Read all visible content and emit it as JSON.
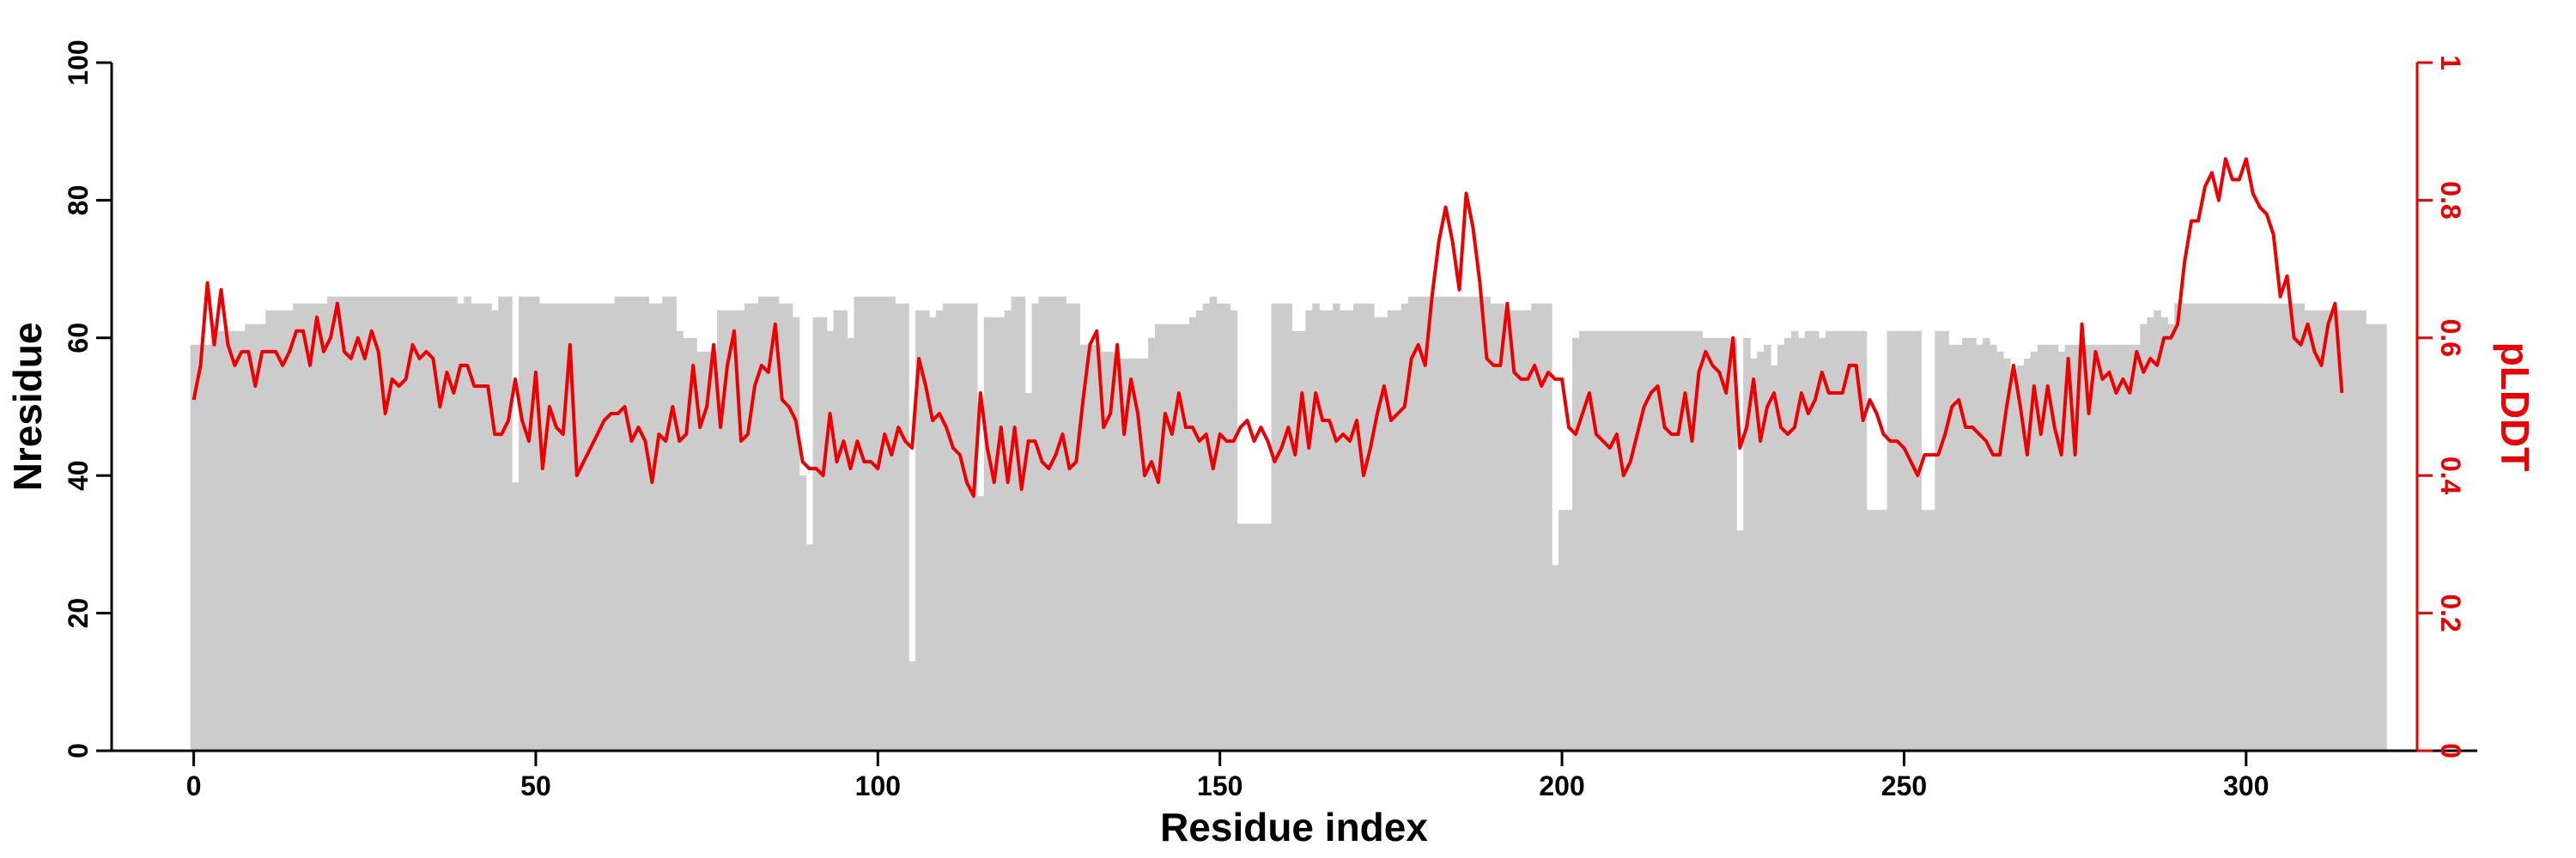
{
  "chart_data": {
    "type": "bar+line",
    "title": "",
    "xlabel": "Residue index",
    "ylabel": "Nresidue",
    "y2label": "pLDDT",
    "xlim": [
      -12,
      325
    ],
    "ylim": [
      0,
      100
    ],
    "y2lim": [
      0,
      1
    ],
    "xticks": [
      "0",
      "50",
      "100",
      "150",
      "200",
      "250",
      "300"
    ],
    "yticks": [
      "0",
      "20",
      "40",
      "60",
      "80",
      "100"
    ],
    "y2ticks": [
      "0",
      "0.2",
      "0.4",
      "0.6",
      "0.8",
      "1"
    ],
    "grid": false,
    "colors": {
      "bars": "#cccccc",
      "line": "#ee0000",
      "axis": "#000000",
      "axis2": "#ee0000"
    },
    "bars": {
      "name": "Nresidue",
      "start": 0,
      "values": [
        59,
        59,
        59,
        61,
        61,
        61,
        61,
        61,
        62,
        62,
        62,
        64,
        64,
        64,
        64,
        65,
        65,
        65,
        65,
        65,
        66,
        66,
        66,
        66,
        66,
        66,
        66,
        66,
        66,
        66,
        66,
        66,
        66,
        66,
        66,
        66,
        66,
        66,
        66,
        65,
        66,
        65,
        65,
        65,
        64,
        66,
        66,
        39,
        66,
        66,
        66,
        65,
        65,
        65,
        65,
        65,
        65,
        65,
        65,
        65,
        65,
        65,
        66,
        66,
        66,
        66,
        66,
        65,
        65,
        66,
        66,
        61,
        60,
        60,
        58,
        58,
        58,
        64,
        64,
        64,
        64,
        65,
        65,
        66,
        66,
        66,
        65,
        65,
        63,
        40,
        30,
        63,
        63,
        61,
        64,
        64,
        60,
        66,
        66,
        66,
        66,
        66,
        66,
        65,
        65,
        13,
        64,
        64,
        63,
        64,
        65,
        65,
        65,
        65,
        65,
        37,
        63,
        63,
        63,
        64,
        66,
        66,
        52,
        65,
        66,
        66,
        66,
        66,
        65,
        65,
        59,
        59,
        59,
        58,
        58,
        57,
        57,
        57,
        57,
        57,
        60,
        62,
        62,
        62,
        62,
        62,
        63,
        64,
        65,
        66,
        65,
        65,
        64,
        33,
        33,
        33,
        33,
        33,
        65,
        65,
        65,
        61,
        61,
        64,
        65,
        64,
        64,
        65,
        64,
        64,
        65,
        65,
        65,
        63,
        63,
        64,
        64,
        65,
        66,
        66,
        66,
        66,
        66,
        66,
        66,
        66,
        66,
        66,
        66,
        66,
        65,
        65,
        64,
        64,
        64,
        64,
        65,
        65,
        65,
        27,
        35,
        35,
        60,
        61,
        61,
        61,
        61,
        61,
        61,
        61,
        61,
        61,
        61,
        61,
        61,
        61,
        61,
        61,
        61,
        61,
        61,
        60,
        60,
        60,
        60,
        60,
        32,
        60,
        57,
        58,
        59,
        56,
        59,
        60,
        61,
        60,
        61,
        61,
        60,
        61,
        61,
        61,
        61,
        61,
        61,
        35,
        35,
        35,
        61,
        61,
        61,
        61,
        61,
        35,
        35,
        61,
        61,
        59,
        59,
        60,
        60,
        59,
        60,
        59,
        58,
        57,
        55,
        56,
        57,
        58,
        59,
        59,
        59,
        58,
        59,
        59,
        59,
        59,
        59,
        59,
        59,
        59,
        59,
        59,
        59,
        62,
        63,
        64,
        63,
        62,
        65,
        65,
        65,
        65,
        65,
        65,
        65,
        65,
        65,
        65,
        65,
        65,
        65,
        65,
        65,
        65,
        65,
        65,
        65,
        64,
        64,
        64,
        64,
        64,
        64,
        64,
        64,
        64,
        62,
        62,
        62
      ]
    },
    "line": {
      "name": "pLDDT",
      "start": 0,
      "values": [
        0.51,
        0.56,
        0.68,
        0.59,
        0.67,
        0.59,
        0.56,
        0.58,
        0.58,
        0.53,
        0.58,
        0.58,
        0.58,
        0.56,
        0.58,
        0.61,
        0.61,
        0.56,
        0.63,
        0.58,
        0.6,
        0.65,
        0.58,
        0.57,
        0.6,
        0.57,
        0.61,
        0.58,
        0.49,
        0.54,
        0.53,
        0.54,
        0.59,
        0.57,
        0.58,
        0.57,
        0.5,
        0.55,
        0.52,
        0.56,
        0.56,
        0.53,
        0.53,
        0.53,
        0.46,
        0.46,
        0.48,
        0.54,
        0.48,
        0.45,
        0.55,
        0.41,
        0.5,
        0.47,
        0.46,
        0.59,
        0.4,
        0.42,
        0.44,
        0.46,
        0.48,
        0.49,
        0.49,
        0.5,
        0.45,
        0.47,
        0.45,
        0.39,
        0.46,
        0.45,
        0.5,
        0.45,
        0.46,
        0.56,
        0.47,
        0.5,
        0.59,
        0.47,
        0.56,
        0.61,
        0.45,
        0.46,
        0.53,
        0.56,
        0.55,
        0.62,
        0.51,
        0.5,
        0.48,
        0.42,
        0.41,
        0.41,
        0.4,
        0.49,
        0.42,
        0.45,
        0.41,
        0.45,
        0.42,
        0.42,
        0.41,
        0.46,
        0.43,
        0.47,
        0.45,
        0.44,
        0.57,
        0.53,
        0.48,
        0.49,
        0.47,
        0.44,
        0.43,
        0.39,
        0.37,
        0.52,
        0.44,
        0.39,
        0.47,
        0.39,
        0.47,
        0.38,
        0.45,
        0.45,
        0.42,
        0.41,
        0.43,
        0.46,
        0.41,
        0.42,
        0.51,
        0.59,
        0.61,
        0.47,
        0.49,
        0.59,
        0.46,
        0.54,
        0.49,
        0.4,
        0.42,
        0.39,
        0.49,
        0.46,
        0.52,
        0.47,
        0.47,
        0.45,
        0.46,
        0.41,
        0.46,
        0.45,
        0.45,
        0.47,
        0.48,
        0.45,
        0.47,
        0.45,
        0.42,
        0.44,
        0.47,
        0.43,
        0.52,
        0.44,
        0.52,
        0.48,
        0.48,
        0.45,
        0.46,
        0.45,
        0.48,
        0.4,
        0.44,
        0.49,
        0.53,
        0.48,
        0.49,
        0.5,
        0.57,
        0.59,
        0.56,
        0.66,
        0.74,
        0.79,
        0.74,
        0.67,
        0.81,
        0.76,
        0.68,
        0.57,
        0.56,
        0.56,
        0.65,
        0.55,
        0.54,
        0.54,
        0.56,
        0.53,
        0.55,
        0.54,
        0.54,
        0.47,
        0.46,
        0.49,
        0.52,
        0.46,
        0.45,
        0.44,
        0.46,
        0.4,
        0.42,
        0.46,
        0.5,
        0.52,
        0.53,
        0.47,
        0.46,
        0.46,
        0.52,
        0.45,
        0.55,
        0.58,
        0.56,
        0.55,
        0.52,
        0.6,
        0.44,
        0.47,
        0.54,
        0.45,
        0.5,
        0.52,
        0.47,
        0.46,
        0.47,
        0.52,
        0.49,
        0.51,
        0.55,
        0.52,
        0.52,
        0.52,
        0.56,
        0.56,
        0.48,
        0.51,
        0.49,
        0.46,
        0.45,
        0.45,
        0.44,
        0.42,
        0.4,
        0.43,
        0.43,
        0.43,
        0.46,
        0.5,
        0.51,
        0.47,
        0.47,
        0.46,
        0.45,
        0.43,
        0.43,
        0.5,
        0.56,
        0.5,
        0.43,
        0.53,
        0.46,
        0.53,
        0.47,
        0.43,
        0.57,
        0.43,
        0.62,
        0.49,
        0.58,
        0.54,
        0.55,
        0.52,
        0.54,
        0.52,
        0.58,
        0.55,
        0.57,
        0.56,
        0.6,
        0.6,
        0.62,
        0.71,
        0.77,
        0.77,
        0.82,
        0.84,
        0.8,
        0.86,
        0.83,
        0.83,
        0.86,
        0.81,
        0.79,
        0.78,
        0.75,
        0.66,
        0.69,
        0.6,
        0.59,
        0.62,
        0.58,
        0.56,
        0.62,
        0.65,
        0.52
      ]
    }
  }
}
